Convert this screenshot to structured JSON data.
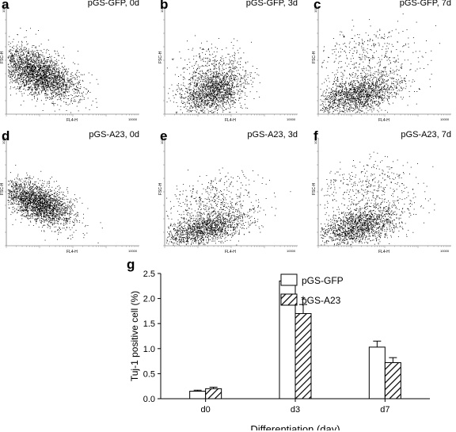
{
  "panels": [
    {
      "letter": "a",
      "title": "pGS-GFP, 0d",
      "xlabel": "FL4-H",
      "ylabel": "FSC-H",
      "max": "10000",
      "ymax": "1023"
    },
    {
      "letter": "b",
      "title": "pGS-GFP, 3d",
      "xlabel": "FL4-H",
      "ylabel": "FSC-H",
      "max": "10000",
      "ymax": "1023"
    },
    {
      "letter": "c",
      "title": "pGS-GFP, 7d",
      "xlabel": "FL4-H",
      "ylabel": "FSC-H",
      "max": "10000",
      "ymax": "1023"
    },
    {
      "letter": "d",
      "title": "pGS-A23, 0d",
      "xlabel": "FL4-H",
      "ylabel": "FSC-H",
      "max": "10000",
      "ymax": "1023"
    },
    {
      "letter": "e",
      "title": "pGS-A23, 3d",
      "xlabel": "FL4-H",
      "ylabel": "FSC-H",
      "max": "10000",
      "ymax": "1023"
    },
    {
      "letter": "f",
      "title": "pGS-A23, 7d",
      "xlabel": "FL4-H",
      "ylabel": "FSC-H",
      "max": "10000",
      "ymax": "1023"
    }
  ],
  "chart_data": {
    "type": "bar",
    "panel_label": "g",
    "categories": [
      "d0",
      "d3",
      "d7"
    ],
    "series": [
      {
        "name": "pGS-GFP",
        "values": [
          0.15,
          2.35,
          1.03
        ],
        "errors": [
          0.02,
          0.1,
          0.12
        ]
      },
      {
        "name": "pGS-A23",
        "values": [
          0.2,
          1.7,
          0.72
        ],
        "errors": [
          0.03,
          0.18,
          0.1
        ]
      }
    ],
    "xlabel": "Differentiation (day)",
    "ylabel": "Tuj-1 positive cell (%)",
    "ylim": [
      0,
      2.5
    ],
    "yticks": [
      "0.0",
      "0.5",
      "1.0",
      "1.5",
      "2.0",
      "2.5"
    ],
    "annotation": "*",
    "legend_position": "top-right",
    "grid": false
  }
}
